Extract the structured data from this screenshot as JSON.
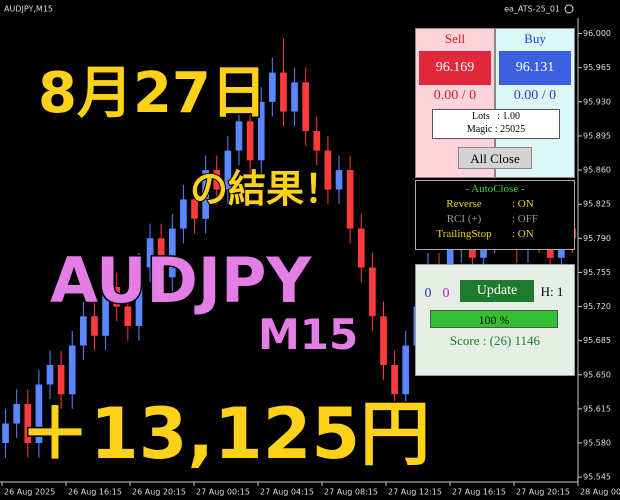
{
  "chart_data": {
    "type": "candlestick",
    "title": "AUDJPY,M15",
    "indicator": "ea_ATS-25_01",
    "up_color": "#5a86ff",
    "down_color": "#ff3b3b",
    "open": [
      95.58,
      95.6,
      95.62,
      95.58,
      95.64,
      95.66,
      95.63,
      95.68,
      95.71,
      95.69,
      95.74,
      95.72,
      95.7,
      95.76,
      95.79,
      95.75,
      95.8,
      95.83,
      95.81,
      95.86,
      95.84,
      95.88,
      95.91,
      95.87,
      95.93,
      95.96,
      95.92,
      95.95,
      95.9,
      95.88,
      95.84,
      95.86,
      95.8,
      95.76,
      95.71,
      95.66,
      95.63,
      95.68,
      95.72,
      95.76,
      95.74,
      95.78,
      95.8,
      95.77,
      95.79,
      95.82,
      95.8,
      95.78,
      95.81,
      95.79,
      95.77,
      95.8
    ],
    "high": [
      95.615,
      95.635,
      95.635,
      95.655,
      95.675,
      95.675,
      95.695,
      95.725,
      95.725,
      95.755,
      95.755,
      95.735,
      95.775,
      95.805,
      95.805,
      95.815,
      95.845,
      95.845,
      95.875,
      95.875,
      95.895,
      95.925,
      95.925,
      95.945,
      95.975,
      95.995,
      95.965,
      95.965,
      95.915,
      95.895,
      95.875,
      95.875,
      95.815,
      95.775,
      95.725,
      95.675,
      95.695,
      95.735,
      95.775,
      95.775,
      95.795,
      95.815,
      95.815,
      95.805,
      95.835,
      95.835,
      95.815,
      95.825,
      95.825,
      95.805,
      95.815,
      95.815
    ],
    "low": [
      95.565,
      95.585,
      95.565,
      95.565,
      95.625,
      95.615,
      95.615,
      95.665,
      95.675,
      95.675,
      95.705,
      95.685,
      95.685,
      95.745,
      95.735,
      95.735,
      95.785,
      95.795,
      95.795,
      95.825,
      95.825,
      95.865,
      95.855,
      95.855,
      95.915,
      95.905,
      95.905,
      95.885,
      95.865,
      95.825,
      95.825,
      95.785,
      95.745,
      95.695,
      95.645,
      95.615,
      95.615,
      95.665,
      95.705,
      95.725,
      95.725,
      95.765,
      95.755,
      95.755,
      95.775,
      95.785,
      95.765,
      95.765,
      95.775,
      95.755,
      95.755,
      95.775
    ],
    "close": [
      95.6,
      95.62,
      95.58,
      95.64,
      95.66,
      95.63,
      95.68,
      95.71,
      95.69,
      95.74,
      95.72,
      95.7,
      95.76,
      95.79,
      95.75,
      95.8,
      95.83,
      95.81,
      95.86,
      95.84,
      95.88,
      95.91,
      95.87,
      95.93,
      95.96,
      95.92,
      95.95,
      95.9,
      95.88,
      95.84,
      95.86,
      95.8,
      95.76,
      95.71,
      95.66,
      95.63,
      95.68,
      95.72,
      95.76,
      95.74,
      95.78,
      95.8,
      95.77,
      95.79,
      95.82,
      95.8,
      95.78,
      95.81,
      95.79,
      95.77,
      95.8,
      95.79
    ],
    "ylim": [
      95.54,
      96.016
    ],
    "yticks": [
      {
        "value": 96,
        "label": "96.000"
      },
      95.965,
      {
        "value": 95.93,
        "label": "95.930"
      },
      95.895,
      {
        "value": 95.86,
        "label": "95.860"
      },
      95.825,
      {
        "value": 95.79,
        "label": "95.790"
      },
      95.755,
      {
        "value": 95.72,
        "label": "95.720"
      },
      95.685,
      {
        "value": 95.65,
        "label": "95.650"
      },
      95.615,
      {
        "value": 95.58,
        "label": "95.580"
      },
      95.545
    ],
    "time_labels": [
      "26 Aug 2025",
      "26 Aug 16:15",
      "26 Aug 20:15",
      "27 Aug 00:15",
      "27 Aug 04:15",
      "27 Aug 08:15",
      "27 Aug 12:15",
      "27 Aug 16:15",
      "27 Aug 20:15",
      "28 Aug 00"
    ]
  },
  "overlay": {
    "date": "8月27日",
    "result": "の結果！",
    "symbol": "AUDJPY",
    "timeframe": "M15",
    "profit": "＋13,125円"
  },
  "panel": {
    "sell": "Sell",
    "buy": "Buy",
    "sell_price": "96.169",
    "buy_price": "96.131",
    "sell_pos": "0.00 / 0",
    "buy_pos": "0.00 / 0",
    "lots": "Lots   : 1.00",
    "magic": "Magic : 25025",
    "all_close": "All Close",
    "autoclose_title": "- AutoClose -",
    "autoclose_rows": [
      [
        "Reverse",
        ": ON"
      ],
      [
        "RCI (+)",
        ": OFF"
      ],
      [
        "TrailingStop",
        ": ON"
      ]
    ],
    "count_a": "0",
    "count_b": "0",
    "update": "Update",
    "h": "H: 1",
    "progress": "100 %",
    "score": "Score : (26) 1146"
  }
}
